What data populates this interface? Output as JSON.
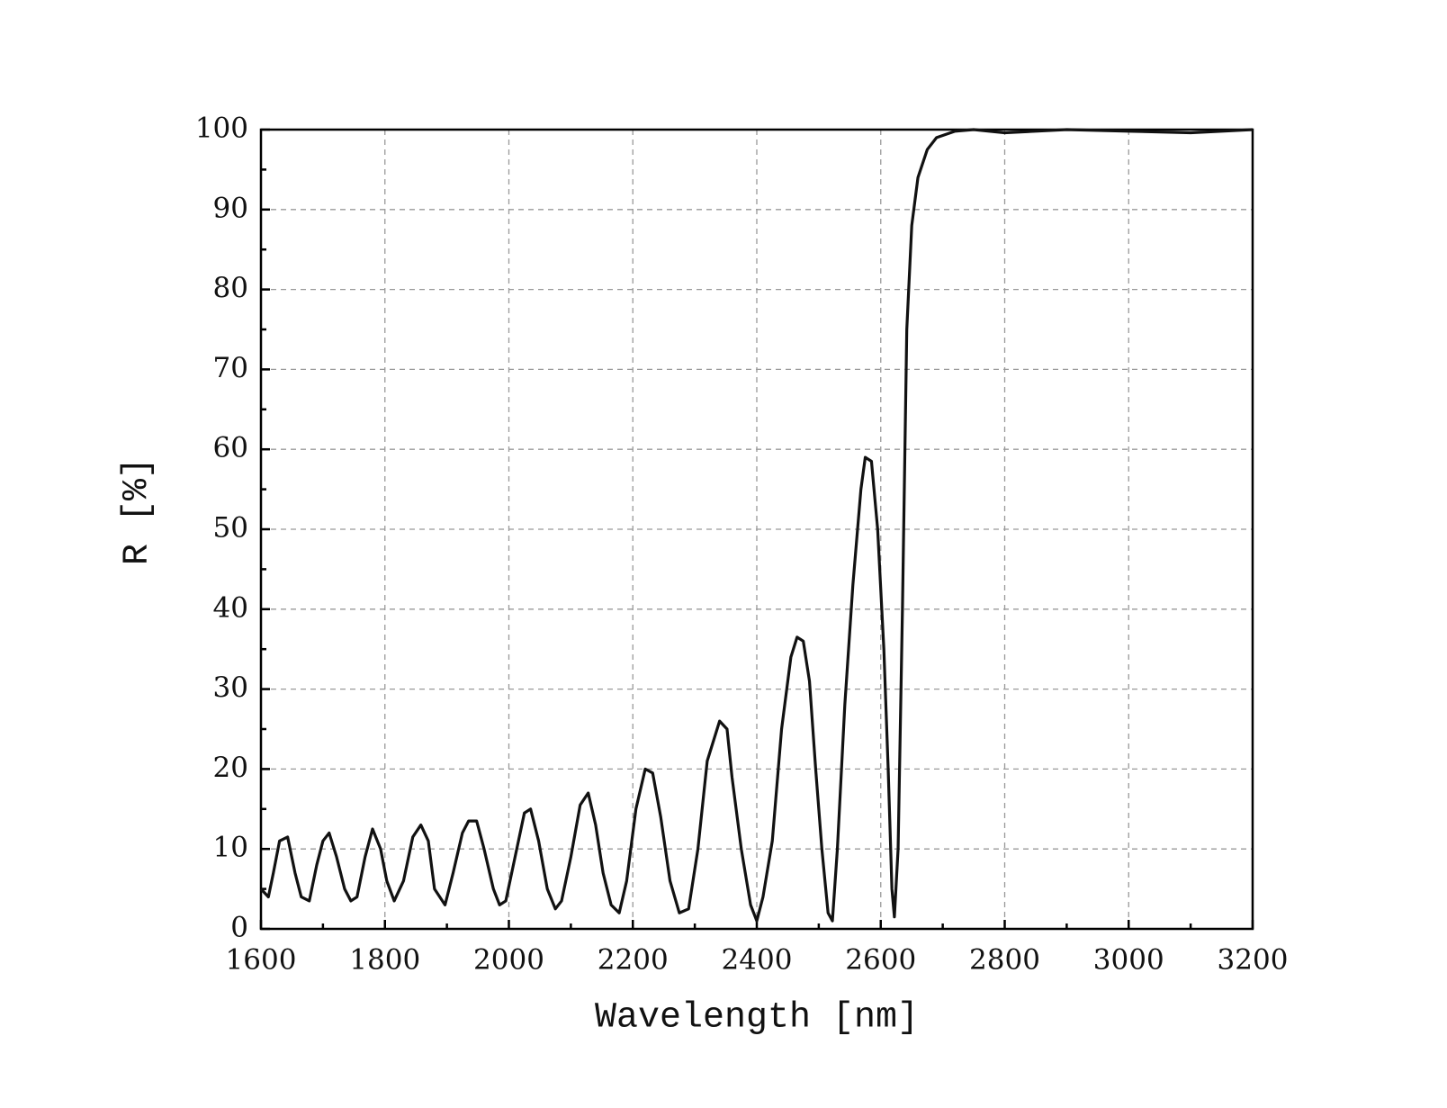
{
  "chart_data": {
    "type": "line",
    "x_label": "Wavelength [nm]",
    "y_label": "R [%]",
    "x": [
      1600,
      1612,
      1620,
      1630,
      1643,
      1655,
      1665,
      1678,
      1690,
      1700,
      1710,
      1722,
      1735,
      1745,
      1755,
      1768,
      1780,
      1793,
      1803,
      1815,
      1830,
      1845,
      1858,
      1870,
      1880,
      1897,
      1910,
      1925,
      1935,
      1948,
      1960,
      1975,
      1985,
      1995,
      2010,
      2025,
      2035,
      2048,
      2062,
      2075,
      2085,
      2100,
      2115,
      2128,
      2140,
      2152,
      2165,
      2178,
      2190,
      2205,
      2220,
      2232,
      2245,
      2260,
      2275,
      2290,
      2305,
      2320,
      2340,
      2352,
      2360,
      2375,
      2390,
      2400,
      2410,
      2425,
      2440,
      2455,
      2465,
      2475,
      2485,
      2495,
      2505,
      2515,
      2522,
      2530,
      2542,
      2555,
      2568,
      2575,
      2585,
      2595,
      2605,
      2612,
      2618,
      2622,
      2628,
      2635,
      2642,
      2650,
      2660,
      2675,
      2690,
      2720,
      2750,
      2800,
      2900,
      3000,
      3100,
      3200
    ],
    "series": [
      {
        "name": "R",
        "color": "#111111",
        "values": [
          5,
          4,
          7,
          11,
          11.5,
          7,
          4,
          3.5,
          8,
          11,
          12,
          9,
          5,
          3.5,
          4,
          9,
          12.5,
          10,
          6,
          3.5,
          6,
          11.5,
          13,
          11,
          5,
          3,
          7,
          12,
          13.5,
          13.5,
          10,
          5,
          3,
          3.5,
          9,
          14.5,
          15,
          11,
          5,
          2.5,
          3.5,
          9,
          15.5,
          17,
          13,
          7,
          3,
          2,
          6,
          15,
          20,
          19.5,
          14,
          6,
          2,
          2.5,
          10,
          21,
          26,
          25,
          19,
          10,
          3,
          1,
          4,
          11,
          25,
          34,
          36.5,
          36,
          31,
          20,
          10,
          2,
          1,
          10,
          28,
          43,
          55,
          59,
          58.5,
          50,
          35,
          20,
          5,
          1.5,
          10,
          40,
          75,
          88,
          94,
          97.5,
          99,
          99.8,
          100,
          99.6,
          100,
          99.8,
          99.6,
          100
        ]
      }
    ],
    "xlim": [
      1600,
      3200
    ],
    "xticks": [
      1600,
      1800,
      2000,
      2200,
      2400,
      2600,
      2800,
      3000,
      3200
    ],
    "ylim": [
      0,
      100
    ],
    "yticks": [
      0,
      10,
      20,
      30,
      40,
      50,
      60,
      70,
      80,
      90,
      100
    ],
    "grid": true
  }
}
